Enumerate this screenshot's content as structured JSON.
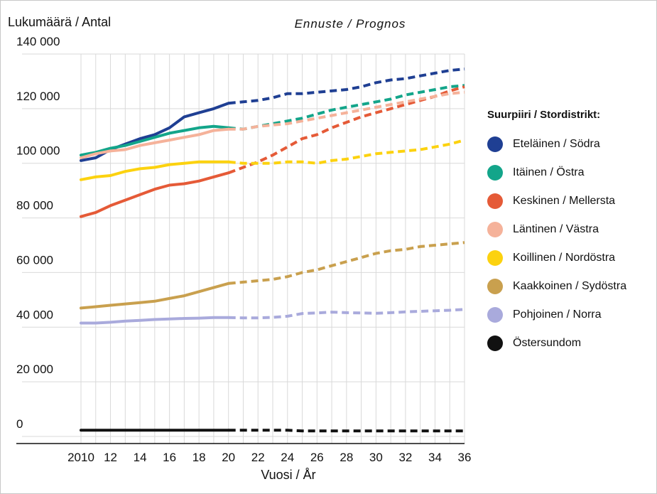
{
  "chart_data": {
    "type": "line",
    "ylabel": "Lukumäärä / Antal",
    "xlabel": "Vuosi / År",
    "forecast_label": "Ennuste / Prognos",
    "legend_title": "Suurpiiri / Stordistrikt:",
    "legend_position": "right",
    "grid": true,
    "ylim": [
      0,
      140000
    ],
    "xlim": [
      2010,
      2036
    ],
    "forecast_start": 2020,
    "y_ticks": [
      0,
      20000,
      40000,
      60000,
      80000,
      100000,
      120000,
      140000
    ],
    "y_tick_labels": [
      "0",
      "20 000",
      "40 000",
      "60 000",
      "80 000",
      "100 000",
      "120 000",
      "140 000"
    ],
    "x_ticks": [
      2010,
      2012,
      2014,
      2016,
      2018,
      2020,
      2022,
      2024,
      2026,
      2028,
      2030,
      2032,
      2034,
      2036
    ],
    "x_tick_labels": [
      "2010",
      "12",
      "14",
      "16",
      "18",
      "20",
      "22",
      "24",
      "26",
      "28",
      "30",
      "32",
      "34",
      "36"
    ],
    "x": [
      2010,
      2011,
      2012,
      2013,
      2014,
      2015,
      2016,
      2017,
      2018,
      2019,
      2020,
      2021,
      2022,
      2023,
      2024,
      2025,
      2026,
      2027,
      2028,
      2029,
      2030,
      2031,
      2032,
      2033,
      2034,
      2035,
      2036
    ],
    "series": [
      {
        "name": "Eteläinen / Södra",
        "color": "#1f3f93",
        "values": [
          101000,
          102000,
          105000,
          107000,
          109000,
          110500,
          113000,
          117000,
          118500,
          120000,
          122000,
          122500,
          123000,
          124000,
          125500,
          125500,
          126000,
          126500,
          127000,
          128000,
          129500,
          130500,
          131000,
          132000,
          133000,
          134000,
          134500
        ]
      },
      {
        "name": "Itäinen / Östra",
        "color": "#13a58a",
        "values": [
          103000,
          104000,
          105500,
          106500,
          108000,
          109500,
          111000,
          112000,
          113000,
          113500,
          113000,
          112500,
          113500,
          114500,
          115500,
          116500,
          118000,
          119500,
          120500,
          121500,
          122500,
          123500,
          125000,
          126000,
          127000,
          128000,
          128500
        ]
      },
      {
        "name": "Keskinen / Mellersta",
        "color": "#e55a37",
        "values": [
          80500,
          82000,
          84500,
          86500,
          88500,
          90500,
          92000,
          92500,
          93500,
          95000,
          96500,
          98500,
          100500,
          103000,
          106000,
          109000,
          110500,
          113000,
          115000,
          117000,
          118500,
          120000,
          121500,
          123000,
          124500,
          126500,
          128000
        ]
      },
      {
        "name": "Läntinen / Västra",
        "color": "#f5b29a",
        "values": [
          102000,
          103500,
          104500,
          105000,
          106500,
          107500,
          108500,
          109500,
          110500,
          112000,
          112500,
          112500,
          113500,
          114000,
          114500,
          115500,
          116500,
          117500,
          118500,
          119500,
          120500,
          121500,
          122500,
          123500,
          124500,
          125500,
          126000
        ]
      },
      {
        "name": "Koillinen / Nordöstra",
        "color": "#fcd20f",
        "values": [
          94000,
          95000,
          95500,
          97000,
          98000,
          98500,
          99500,
          100000,
          100500,
          100500,
          100500,
          100000,
          100000,
          100000,
          100500,
          100500,
          100000,
          101000,
          101500,
          102500,
          103500,
          104000,
          104500,
          105000,
          106000,
          107000,
          108500
        ]
      },
      {
        "name": "Kaakkoinen / Sydöstra",
        "color": "#c9a04e",
        "values": [
          47000,
          47500,
          48000,
          48500,
          49000,
          49500,
          50500,
          51500,
          53000,
          54500,
          56000,
          56500,
          57000,
          57500,
          58500,
          60000,
          61000,
          62500,
          64000,
          65500,
          67000,
          68000,
          68500,
          69500,
          70000,
          70500,
          71000
        ]
      },
      {
        "name": "Pohjoinen / Norra",
        "color": "#a9aadc",
        "values": [
          41500,
          41500,
          41800,
          42200,
          42500,
          42800,
          43000,
          43200,
          43300,
          43500,
          43500,
          43400,
          43400,
          43600,
          44000,
          45000,
          45200,
          45500,
          45300,
          45200,
          45100,
          45300,
          45600,
          45800,
          46000,
          46200,
          46500
        ]
      },
      {
        "name": "Östersundom",
        "color": "#111111",
        "values": [
          2300,
          2300,
          2300,
          2300,
          2300,
          2300,
          2300,
          2300,
          2300,
          2300,
          2300,
          2300,
          2300,
          2300,
          2300,
          2000,
          2000,
          2000,
          2000,
          2000,
          2000,
          2000,
          2000,
          2000,
          2000,
          2000,
          2000
        ]
      }
    ]
  }
}
